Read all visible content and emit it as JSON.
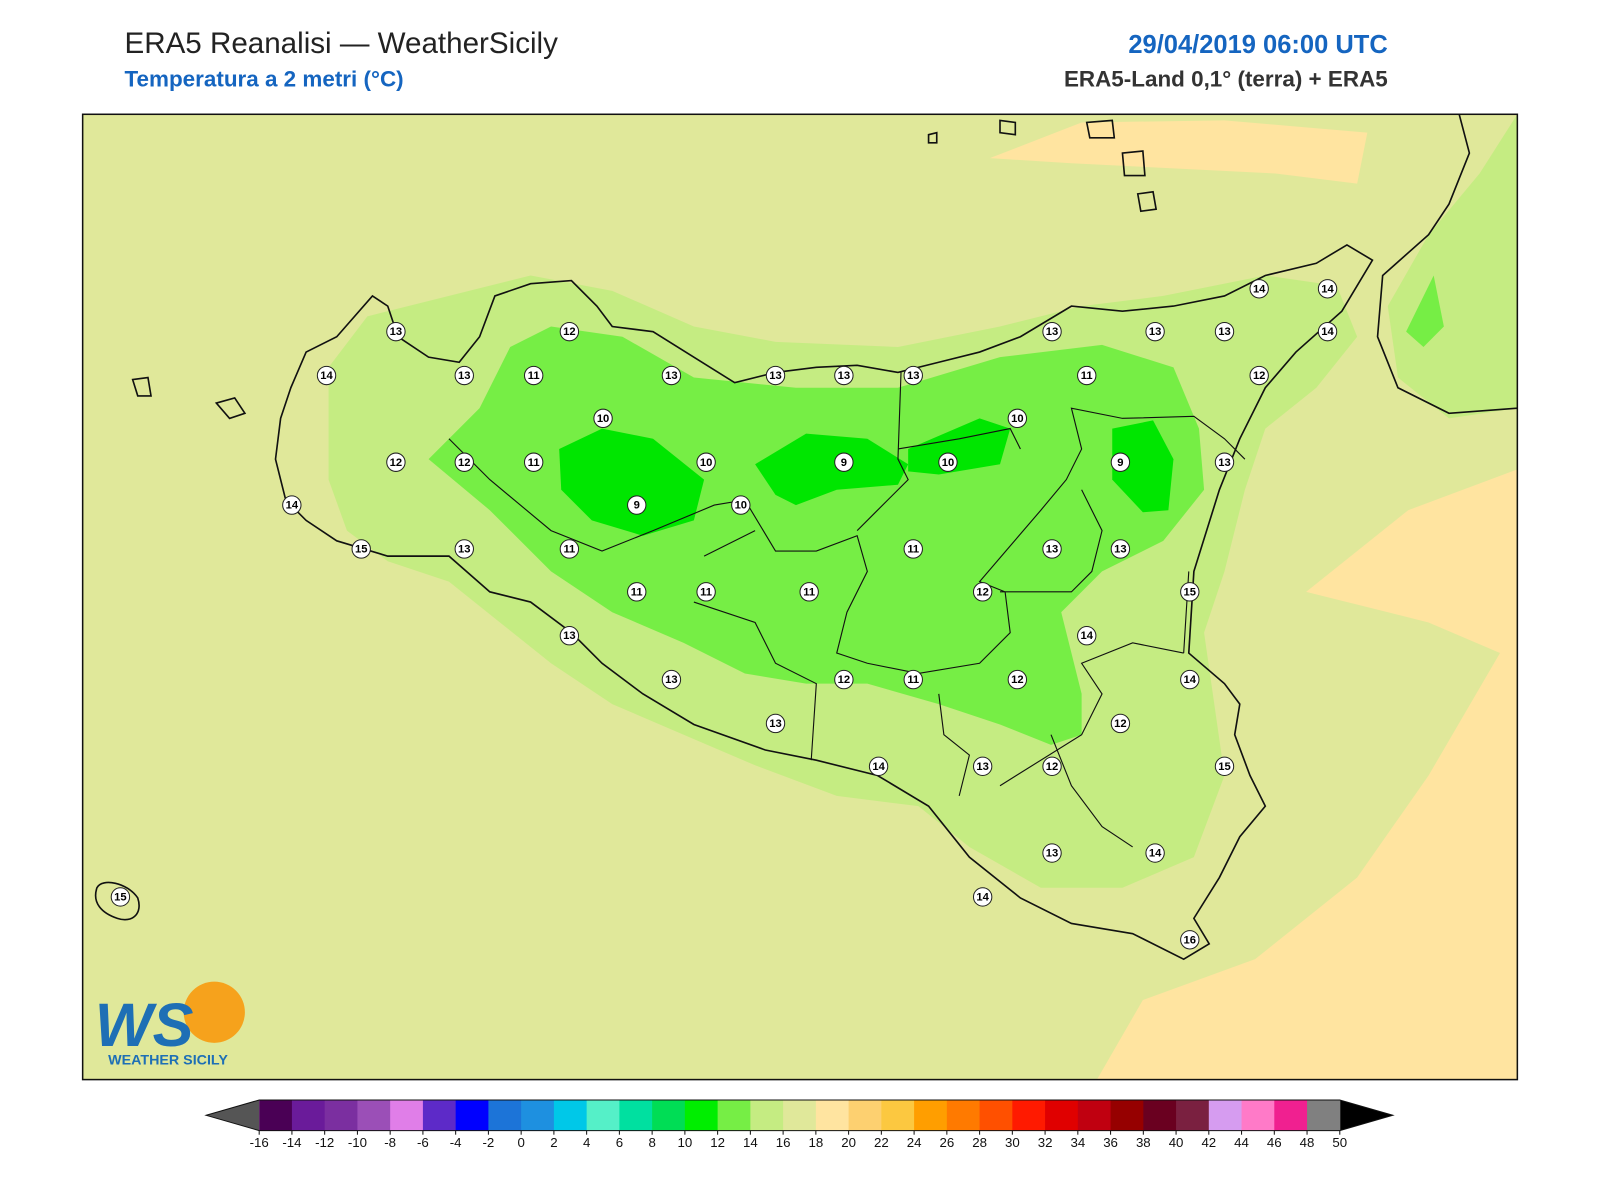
{
  "header": {
    "title": "ERA5 Reanalisi — WeatherSicily",
    "subtitle": "Temperatura a 2 metri (°C)",
    "date": "29/04/2019 06:00 UTC",
    "source": "ERA5-Land 0,1° (terra) + ERA5"
  },
  "logo": {
    "mark": "WS",
    "name": "WEATHER SICILY"
  },
  "stations": [
    13,
    14,
    13,
    11,
    12,
    10,
    12,
    12,
    11,
    10,
    14,
    9,
    10,
    15,
    13,
    11,
    11,
    11,
    11,
    13,
    13,
    13,
    13,
    13,
    13,
    9,
    13,
    10,
    10,
    11,
    12,
    12,
    11,
    12,
    14,
    13,
    12,
    13,
    11,
    13,
    13,
    14,
    14,
    14,
    12,
    9,
    13,
    13,
    13,
    15,
    14,
    14,
    12,
    15,
    13,
    14,
    14,
    16,
    15
  ],
  "colorbar": {
    "ticks": [
      -16,
      -14,
      -12,
      -10,
      -8,
      -6,
      -4,
      -2,
      0,
      2,
      4,
      6,
      8,
      10,
      12,
      14,
      16,
      18,
      20,
      22,
      24,
      26,
      28,
      30,
      32,
      34,
      36,
      38,
      40,
      42,
      44,
      46,
      48,
      50
    ],
    "colors": [
      "#4a0055",
      "#6a1b9a",
      "#7b2fa0",
      "#9b4fb7",
      "#e07ee8",
      "#5d2ac8",
      "#0000ff",
      "#1c74d8",
      "#1e90e0",
      "#00c8e8",
      "#55f0c8",
      "#00e0a0",
      "#00dd55",
      "#00ee00",
      "#76ee45",
      "#c5ec82",
      "#e0e89a",
      "#ffe4a0",
      "#fdd070",
      "#fcc840",
      "#ff9e00",
      "#ff7a00",
      "#ff5000",
      "#ff1a00",
      "#e00000",
      "#c00010",
      "#960000",
      "#6a0020",
      "#7a2040",
      "#d69cf0",
      "#ff7ac8",
      "#f02090",
      "#808080"
    ],
    "under_color": "#555555",
    "over_color": "#000000"
  }
}
